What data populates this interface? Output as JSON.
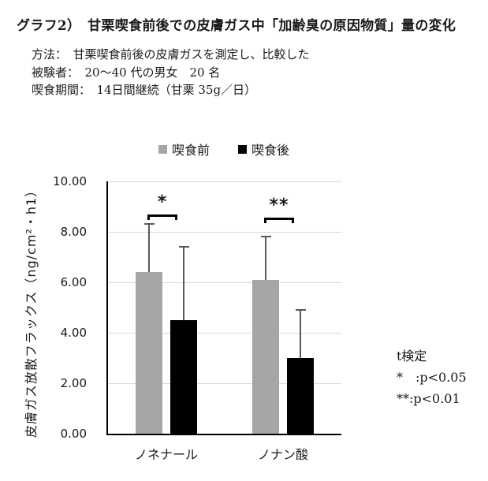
{
  "header": {
    "title": "グラフ2）　甘栗喫食前後での皮膚ガス中「加齢臭の原因物質」量の変化",
    "info_lines": [
      "方法：　甘栗喫食前後の皮膚ガスを測定し、比較した",
      "被験者：　20～40 代の男女　20 名",
      "喫食期間：　14日間継続（甘栗 35g／日）"
    ]
  },
  "chart_data": {
    "type": "bar",
    "categories": [
      "ノネナール",
      "ノナン酸"
    ],
    "series": [
      {
        "name": "喫食前",
        "color": "#a6a6a6",
        "values": [
          6.4,
          6.1
        ],
        "error_plus": [
          1.9,
          1.7
        ]
      },
      {
        "name": "喫食後",
        "color": "#000000",
        "values": [
          4.5,
          3.0
        ],
        "error_plus": [
          2.9,
          1.9
        ]
      }
    ],
    "ylabel": "皮膚ガス放散フラックス（ng/cm²・h1）",
    "ylim": [
      0,
      10
    ],
    "ytick_step": 2,
    "grid": true,
    "legend_position": "top",
    "error_color": "#595959",
    "grid_color": "#d9d9d9",
    "significance": [
      {
        "label": "*",
        "category": "ノネナール",
        "bracket_top_value": 8.7
      },
      {
        "label": "**",
        "category": "ノナン酸",
        "bracket_top_value": 8.55
      }
    ],
    "note_lines": [
      "t検定",
      "*　:p<0.05",
      "**:p<0.01"
    ]
  }
}
